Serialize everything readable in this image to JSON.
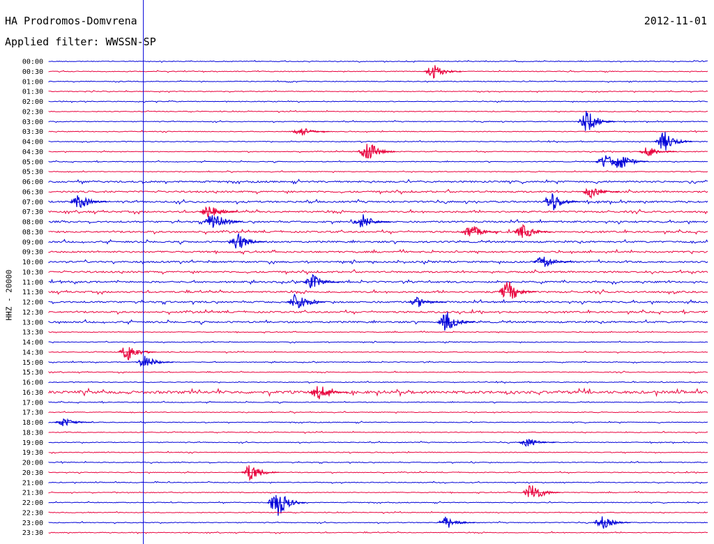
{
  "header": {
    "station": "HA Prodromos-Domvrena",
    "filter": "Applied filter: WWSSN-SP",
    "date": "2012-11-01"
  },
  "chart_data": {
    "type": "line",
    "title": "HA Prodromos-Domvrena",
    "ylabel": "HHZ - 20000",
    "rows": [
      "00:00",
      "00:30",
      "01:00",
      "01:30",
      "02:00",
      "02:30",
      "03:00",
      "03:30",
      "04:00",
      "04:30",
      "05:00",
      "05:30",
      "06:00",
      "06:30",
      "07:00",
      "07:30",
      "08:00",
      "08:30",
      "09:00",
      "09:30",
      "10:00",
      "10:30",
      "11:00",
      "11:30",
      "12:00",
      "12:30",
      "13:00",
      "13:30",
      "14:00",
      "14:30",
      "15:00",
      "15:30",
      "16:00",
      "16:30",
      "17:00",
      "17:30",
      "18:00",
      "18:30",
      "19:00",
      "19:30",
      "20:00",
      "20:30",
      "21:00",
      "21:30",
      "22:00",
      "22:30",
      "23:00",
      "23:30"
    ],
    "series_colors": [
      "#0000d8",
      "#e8003c"
    ],
    "grid": false,
    "events": [
      {
        "row": "00:30",
        "minute": 17.5,
        "amplitude": 12
      },
      {
        "row": "03:00",
        "minute": 24.5,
        "amplitude": 18
      },
      {
        "row": "03:30",
        "minute": 11.5,
        "amplitude": 7
      },
      {
        "row": "04:00",
        "minute": 28,
        "amplitude": 16
      },
      {
        "row": "04:30",
        "minute": 14.5,
        "amplitude": 18
      },
      {
        "row": "04:30",
        "minute": 27.3,
        "amplitude": 9
      },
      {
        "row": "05:00",
        "minute": 25.3,
        "amplitude": 12
      },
      {
        "row": "05:00",
        "minute": 26,
        "amplitude": 14
      },
      {
        "row": "06:30",
        "minute": 24.7,
        "amplitude": 10
      },
      {
        "row": "07:00",
        "minute": 1.4,
        "amplitude": 12
      },
      {
        "row": "07:00",
        "minute": 22.9,
        "amplitude": 16
      },
      {
        "row": "07:30",
        "minute": 7.3,
        "amplitude": 10
      },
      {
        "row": "08:00",
        "minute": 7.5,
        "amplitude": 18
      },
      {
        "row": "08:00",
        "minute": 14.3,
        "amplitude": 12
      },
      {
        "row": "08:30",
        "minute": 19.2,
        "amplitude": 12
      },
      {
        "row": "08:30",
        "minute": 21.6,
        "amplitude": 12
      },
      {
        "row": "09:00",
        "minute": 8.6,
        "amplitude": 14
      },
      {
        "row": "10:00",
        "minute": 22.5,
        "amplitude": 12
      },
      {
        "row": "11:00",
        "minute": 12,
        "amplitude": 12
      },
      {
        "row": "11:30",
        "minute": 20.9,
        "amplitude": 18
      },
      {
        "row": "12:00",
        "minute": 11.3,
        "amplitude": 16
      },
      {
        "row": "12:00",
        "minute": 16.8,
        "amplitude": 8
      },
      {
        "row": "13:00",
        "minute": 18.1,
        "amplitude": 16
      },
      {
        "row": "14:30",
        "minute": 3.6,
        "amplitude": 14
      },
      {
        "row": "15:00",
        "minute": 4.4,
        "amplitude": 10
      },
      {
        "row": "16:30",
        "minute": 12.3,
        "amplitude": 12
      },
      {
        "row": "18:00",
        "minute": 0.7,
        "amplitude": 7
      },
      {
        "row": "19:00",
        "minute": 21.8,
        "amplitude": 7
      },
      {
        "row": "20:30",
        "minute": 9.2,
        "amplitude": 14
      },
      {
        "row": "21:30",
        "minute": 22,
        "amplitude": 16
      },
      {
        "row": "22:00",
        "minute": 10.4,
        "amplitude": 24
      },
      {
        "row": "23:00",
        "minute": 18.1,
        "amplitude": 10
      },
      {
        "row": "23:00",
        "minute": 25.2,
        "amplitude": 10
      }
    ],
    "marker_minute": 4.3
  }
}
